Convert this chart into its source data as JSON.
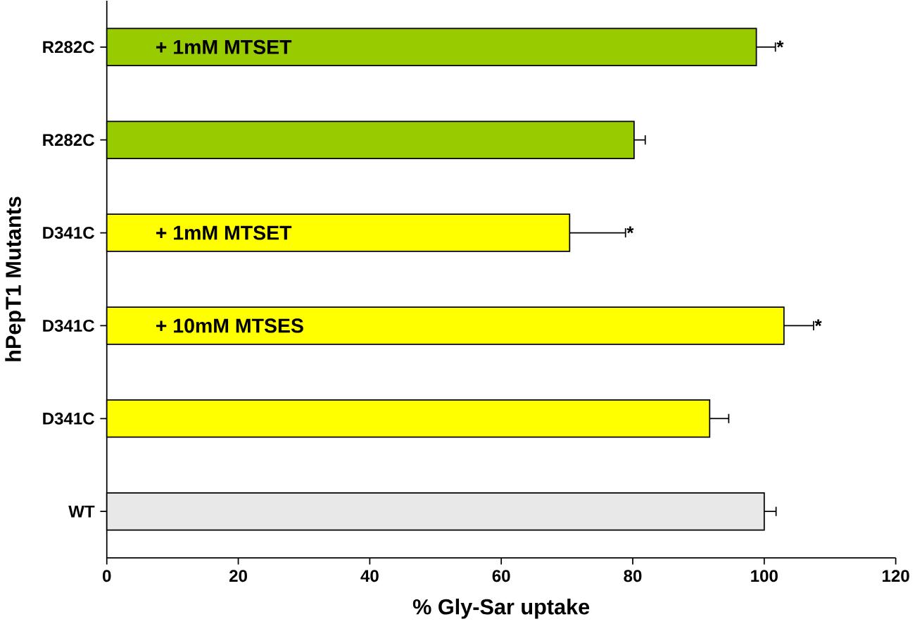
{
  "chart_data": {
    "type": "bar",
    "orientation": "horizontal",
    "xlabel": "% Gly-Sar uptake",
    "ylabel": "hPepT1 Mutants",
    "categories": [
      "R282C",
      "R282C",
      "D341C",
      "D341C",
      "D341C",
      "WT"
    ],
    "values": [
      98.8,
      80.2,
      70.4,
      103.0,
      91.7,
      100.0
    ],
    "errors": [
      2.9,
      1.7,
      8.5,
      4.5,
      2.9,
      1.8
    ],
    "colors": [
      "#99cc00",
      "#99cc00",
      "#ffff00",
      "#ffff00",
      "#ffff00",
      "#e8e8e8"
    ],
    "value_labels": [
      "*",
      null,
      "*",
      "*",
      null,
      null
    ],
    "annotations": [
      "+ 1mM MTSET",
      "+ 1mM MTSET",
      "+ 10mM MTSES"
    ],
    "xlim": [
      0,
      120
    ],
    "xticks": [
      0,
      20,
      40,
      60,
      80,
      100,
      120
    ],
    "grid": false
  }
}
